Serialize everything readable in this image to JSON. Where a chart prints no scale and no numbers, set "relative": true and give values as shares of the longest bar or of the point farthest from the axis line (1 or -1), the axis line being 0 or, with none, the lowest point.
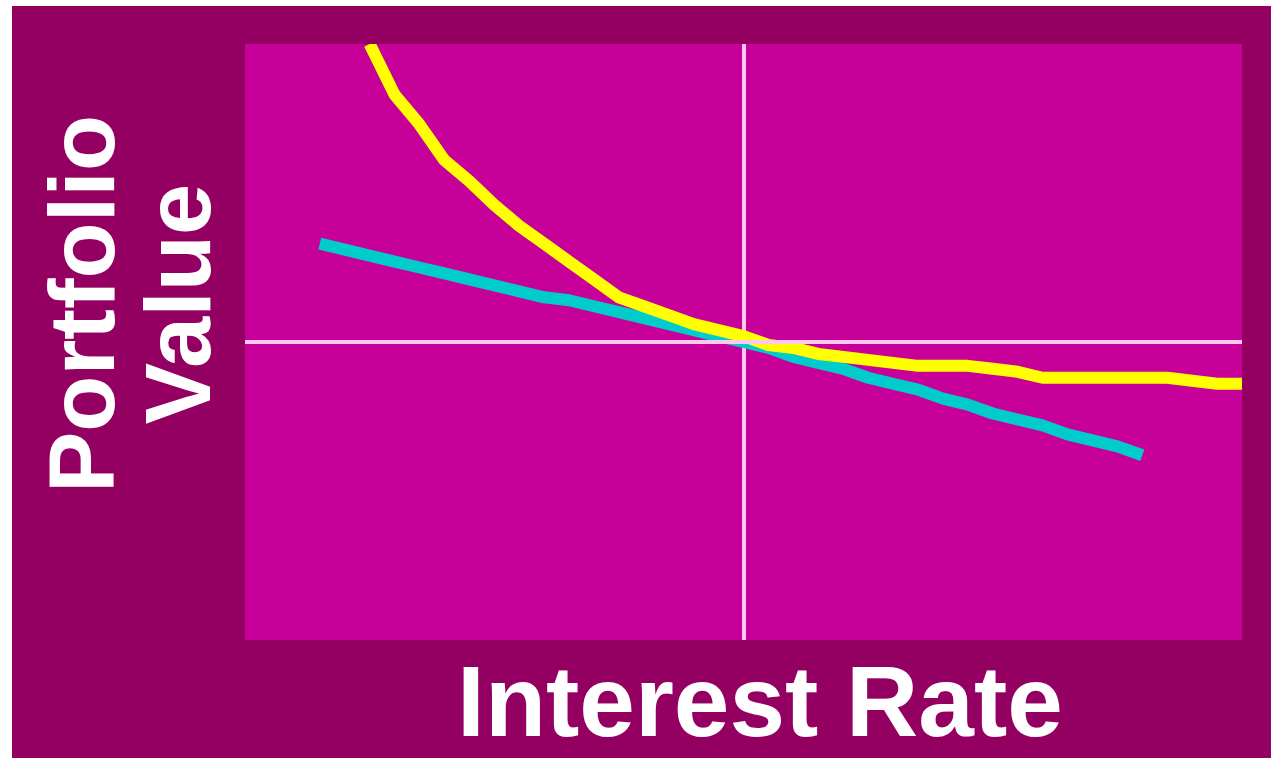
{
  "chart_data": {
    "type": "line",
    "relative": true,
    "tick_labels": false,
    "marker": "none",
    "line_style": "solid",
    "xlabel": "Interest Rate",
    "ref_lines": [
      {
        "axis": "y",
        "value": 0,
        "color": "#ffc8f0"
      }
    ],
    "ylabel": "Portfolio Value",
    "categories": [
      null,
      null,
      null,
      null,
      null,
      null,
      null,
      null,
      null,
      null,
      null,
      null,
      null,
      null,
      null,
      null,
      null,
      null,
      null,
      null,
      null,
      null,
      null,
      null,
      null,
      null,
      null,
      null,
      null,
      null,
      null,
      null,
      null,
      null,
      null,
      null,
      null,
      null,
      null,
      null,
      null
    ],
    "series": [
      {
        "color": "#ffff00",
        "values": [
          null,
          null,
          null,
          null,
          null,
          1,
          0.83,
          0.73,
          0.61,
          0.54,
          0.46,
          0.39,
          0.33,
          0.27,
          0.21,
          0.15,
          0.12,
          0.09,
          0.06,
          0.04,
          0.02,
          -0.01,
          -0.02,
          -0.04,
          -0.05,
          -0.06,
          -0.07,
          -0.08,
          -0.08,
          -0.08,
          -0.09,
          -0.1,
          -0.12,
          -0.12,
          -0.12,
          -0.12,
          -0.12,
          -0.12,
          -0.13,
          -0.14,
          -0.14
        ]
      },
      {
        "color": "#00cccc",
        "values": [
          null,
          null,
          null,
          0.33,
          0.31,
          0.29,
          0.27,
          0.25,
          0.23,
          0.21,
          0.19,
          0.17,
          0.15,
          0.14,
          0.12,
          0.1,
          0.08,
          0.06,
          0.04,
          0.02,
          0,
          -0.02,
          -0.05,
          -0.07,
          -0.09,
          -0.12,
          -0.14,
          -0.16,
          -0.19,
          -0.21,
          -0.24,
          -0.26,
          -0.28,
          -0.31,
          -0.33,
          -0.35,
          -0.38,
          null,
          null,
          null,
          null
        ]
      }
    ]
  }
}
